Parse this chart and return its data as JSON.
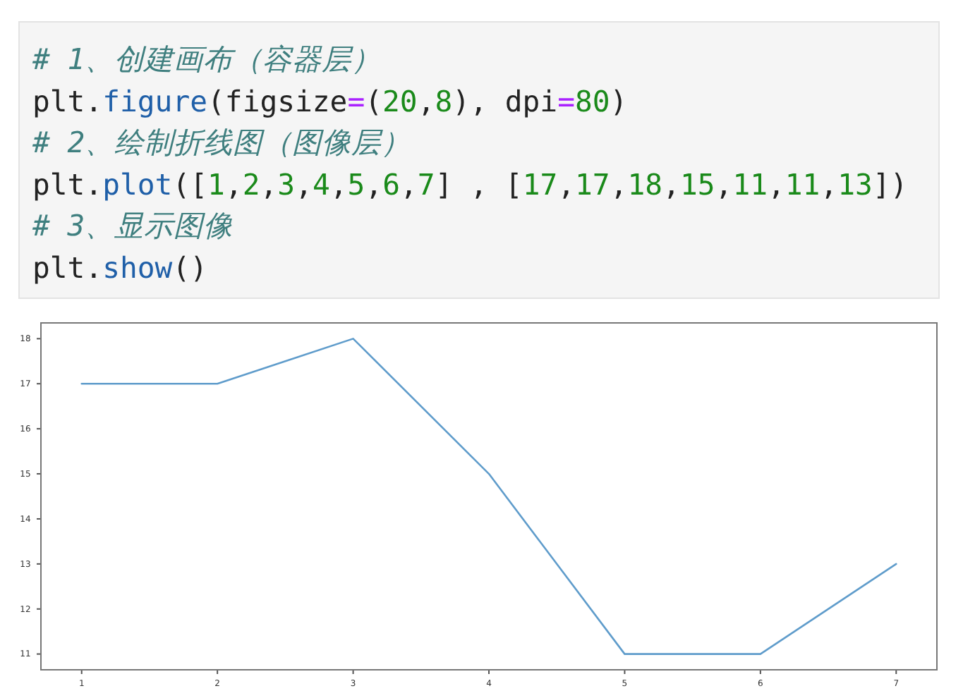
{
  "chart_data": {
    "type": "line",
    "annotations": [
      "# 1、创建画布（容器层）",
      "plt.figure(figsize=(20,8), dpi=80)",
      "# 2、绘制折线图（图像层）",
      "plt.plot([1,2,3,4,5,6,7] , [17,17,18,15,11,11,13])",
      "# 3、显示图像",
      "plt.show()"
    ],
    "x": [
      1,
      2,
      3,
      4,
      5,
      6,
      7
    ],
    "values": [
      17,
      17,
      18,
      15,
      11,
      11,
      13
    ],
    "color": "#5f9ccb",
    "xlim": [
      0.7,
      7.3
    ],
    "ylim": [
      10.65,
      18.35
    ],
    "xticks": [
      1,
      2,
      3,
      4,
      5,
      6,
      7
    ],
    "yticks": [
      11,
      12,
      13,
      14,
      15,
      16,
      17,
      18
    ],
    "line_style": "solid"
  }
}
